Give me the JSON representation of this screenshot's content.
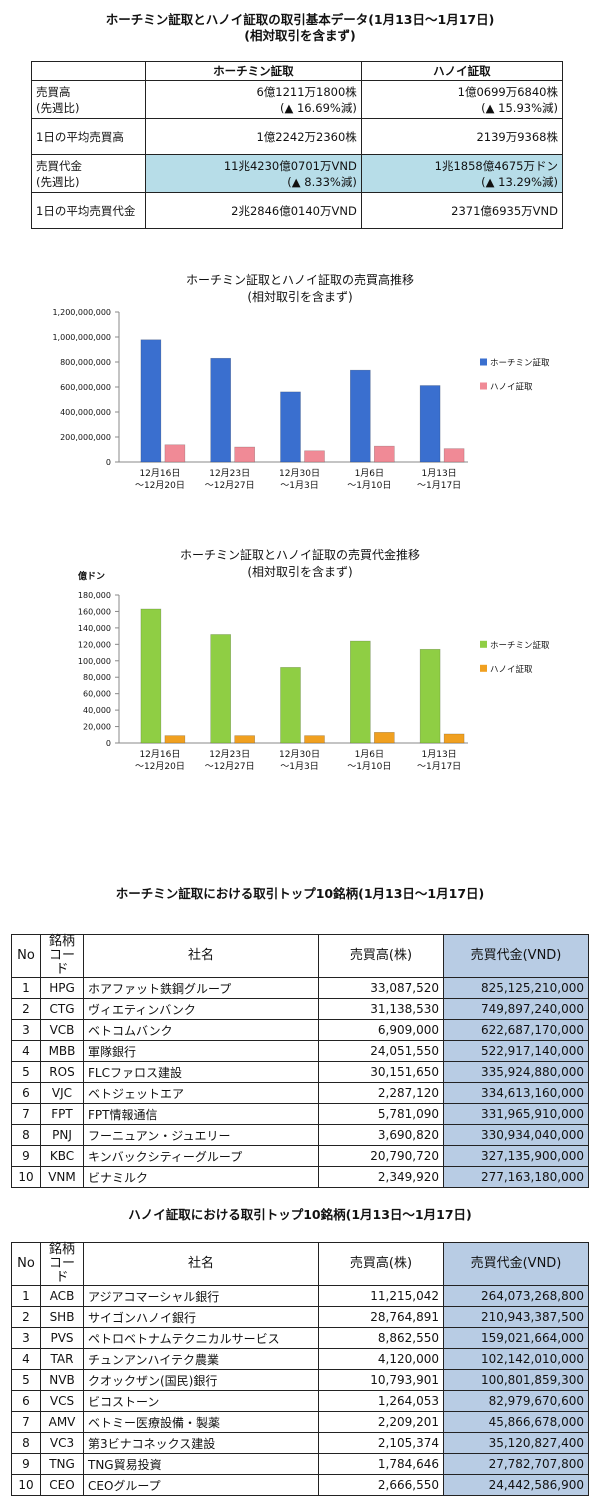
{
  "summary": {
    "title_line1": "ホーチミン証取とハノイ証取の取引基本データ(1月13日～1月17日)",
    "title_line2": "(相対取引を含まず)",
    "col_hcm": "ホーチミン証取",
    "col_hn": "ハノイ証取",
    "rows": [
      {
        "label1": "売買高",
        "label2": "(先週比)",
        "hcm1": "6億1211万1800株",
        "hcm2": "(▲ 16.69%減)",
        "hn1": "1億0699万6840株",
        "hn2": "(▲ 15.93%減)"
      },
      {
        "label1": "1日の平均売買高",
        "hcm1": "1億2242万2360株",
        "hn1": "2139万9368株"
      },
      {
        "label1": "売買代金",
        "label2": "(先週比)",
        "hcm1": "11兆4230億0701万VND",
        "hcm2": "(▲ 8.33%減)",
        "hn1": "1兆1858億4675万ドン",
        "hn2": "(▲ 13.29%減)"
      },
      {
        "label1": "1日の平均売買代金",
        "hcm1": "2兆2846億0140万VND",
        "hn1": "2371億6935万VND"
      }
    ]
  },
  "colors": {
    "hcm_volume": "#3a6fcf",
    "hn_volume": "#f08a96",
    "hcm_value": "#8fce44",
    "hn_value": "#f0a020",
    "highlight": "#b7dde8",
    "value_col": "#b8cce4"
  },
  "chart_data": [
    {
      "type": "bar",
      "title": "ホーチミン証取とハノイ証取の売買高推移",
      "subtitle": "(相対取引を含まず)",
      "categories": [
        [
          "12月16日",
          "～12月20日"
        ],
        [
          "12月23日",
          "～12月27日"
        ],
        [
          "12月30日",
          "～1月3日"
        ],
        [
          "1月6日",
          "～1月10日"
        ],
        [
          "1月13日",
          "～1月17日"
        ]
      ],
      "series": [
        {
          "name": "ホーチミン証取",
          "values": [
            978000000,
            830000000,
            561000000,
            735000000,
            612000000
          ]
        },
        {
          "name": "ハノイ証取",
          "values": [
            138000000,
            120000000,
            90000000,
            127000000,
            107000000
          ]
        }
      ],
      "ylim": [
        0,
        1200000000
      ],
      "yticks": [
        "0",
        "200,000,000",
        "400,000,000",
        "600,000,000",
        "800,000,000",
        "1,000,000,000",
        "1,200,000,000"
      ],
      "ylabel": "",
      "legend": "right"
    },
    {
      "type": "bar",
      "title": "ホーチミン証取とハノイ証取の売買代金推移",
      "subtitle": "(相対取引を含まず)",
      "categories": [
        [
          "12月16日",
          "～12月20日"
        ],
        [
          "12月23日",
          "～12月27日"
        ],
        [
          "12月30日",
          "～1月3日"
        ],
        [
          "1月6日",
          "～1月10日"
        ],
        [
          "1月13日",
          "～1月17日"
        ]
      ],
      "series": [
        {
          "name": "ホーチミン証取",
          "values": [
            163000,
            132000,
            92000,
            124000,
            114000
          ]
        },
        {
          "name": "ハノイ証取",
          "values": [
            9000,
            9000,
            9000,
            13000,
            11000
          ]
        }
      ],
      "ylim": [
        0,
        180000
      ],
      "yticks": [
        "0",
        "20,000",
        "40,000",
        "60,000",
        "80,000",
        "100,000",
        "120,000",
        "140,000",
        "160,000",
        "180,000"
      ],
      "ylabel": "億ドン",
      "legend": "right"
    }
  ],
  "hcm_top": {
    "title": "ホーチミン証取における取引トップ10銘柄(1月13日～1月17日)",
    "headers": {
      "no": "No",
      "code1": "銘柄",
      "code2": "コード",
      "name": "社名",
      "volume": "売買高(株)",
      "value": "売買代金(VND)"
    },
    "rows": [
      [
        "1",
        "HPG",
        "ホアファット鉄鋼グループ",
        "33,087,520",
        "825,125,210,000"
      ],
      [
        "2",
        "CTG",
        "ヴィエティンバンク",
        "31,138,530",
        "749,897,240,000"
      ],
      [
        "3",
        "VCB",
        "ベトコムバンク",
        "6,909,000",
        "622,687,170,000"
      ],
      [
        "4",
        "MBB",
        "軍隊銀行",
        "24,051,550",
        "522,917,140,000"
      ],
      [
        "5",
        "ROS",
        "FLCファロス建設",
        "30,151,650",
        "335,924,880,000"
      ],
      [
        "6",
        "VJC",
        "ベトジェットエア",
        "2,287,120",
        "334,613,160,000"
      ],
      [
        "7",
        "FPT",
        "FPT情報通信",
        "5,781,090",
        "331,965,910,000"
      ],
      [
        "8",
        "PNJ",
        "フーニュアン・ジュエリー",
        "3,690,820",
        "330,934,040,000"
      ],
      [
        "9",
        "KBC",
        "キンバックシティーグループ",
        "20,790,720",
        "327,135,900,000"
      ],
      [
        "10",
        "VNM",
        "ビナミルク",
        "2,349,920",
        "277,163,180,000"
      ]
    ]
  },
  "hn_top": {
    "title": "ハノイ証取における取引トップ10銘柄(1月13日～1月17日)",
    "headers": {
      "no": "No",
      "code1": "銘柄",
      "code2": "コード",
      "name": "社名",
      "volume": "売買高(株)",
      "value": "売買代金(VND)"
    },
    "rows": [
      [
        "1",
        "ACB",
        "アジアコマーシャル銀行",
        "11,215,042",
        "264,073,268,800"
      ],
      [
        "2",
        "SHB",
        "サイゴンハノイ銀行",
        "28,764,891",
        "210,943,387,500"
      ],
      [
        "3",
        "PVS",
        "ペトロベトナムテクニカルサービス",
        "8,862,550",
        "159,021,664,000"
      ],
      [
        "4",
        "TAR",
        "チュンアンハイテク農業",
        "4,120,000",
        "102,142,010,000"
      ],
      [
        "5",
        "NVB",
        "クオックザン(国民)銀行",
        "10,793,901",
        "100,801,859,300"
      ],
      [
        "6",
        "VCS",
        "ビコストーン",
        "1,264,053",
        "82,979,670,600"
      ],
      [
        "7",
        "AMV",
        "ベトミー医療設備・製薬",
        "2,209,201",
        "45,866,678,000"
      ],
      [
        "8",
        "VC3",
        "第3ビナコネックス建設",
        "2,105,374",
        "35,120,827,400"
      ],
      [
        "9",
        "TNG",
        "TNG貿易投資",
        "1,784,646",
        "27,782,707,800"
      ],
      [
        "10",
        "CEO",
        "CEOグループ",
        "2,666,550",
        "24,442,586,900"
      ]
    ]
  }
}
